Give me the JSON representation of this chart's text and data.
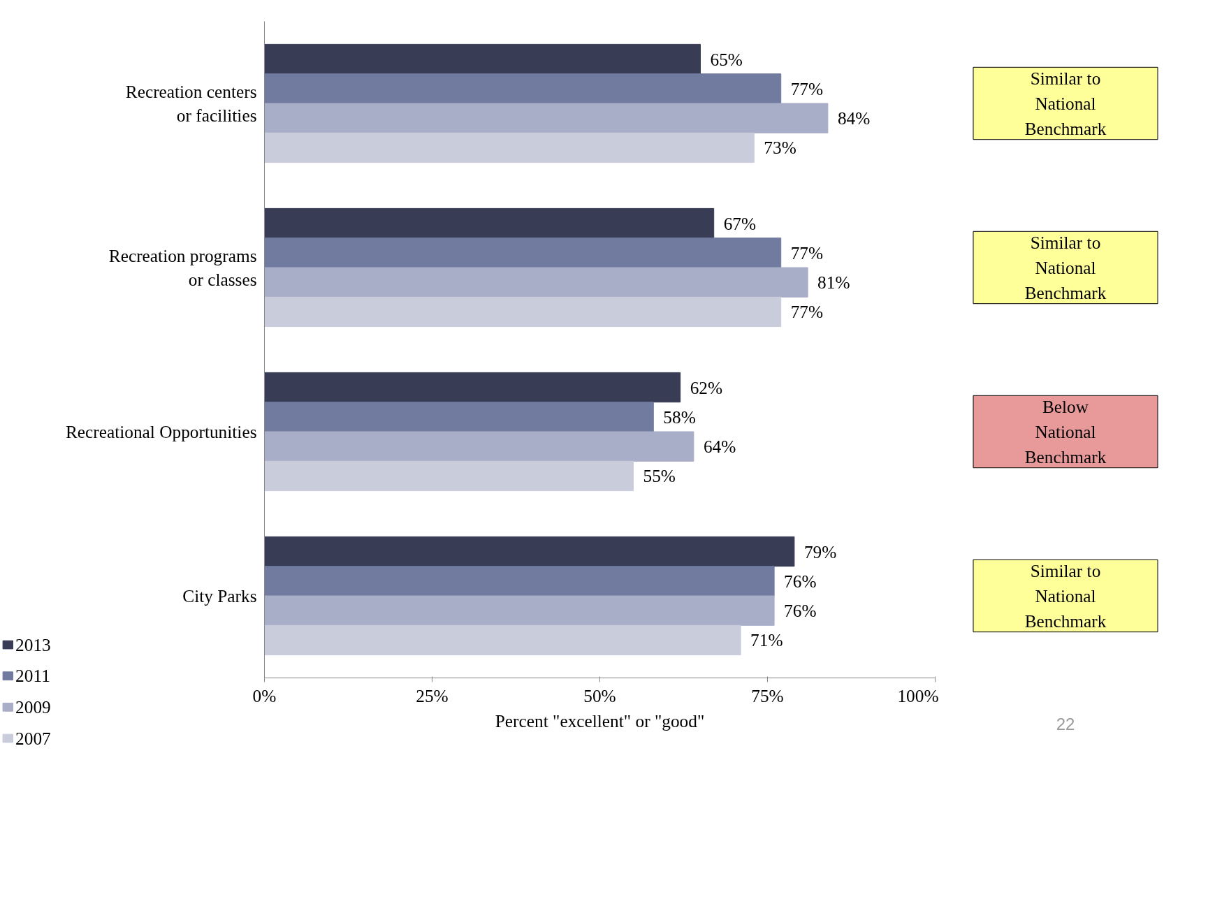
{
  "chart_data": {
    "type": "bar",
    "orientation": "horizontal",
    "xlabel": "Percent \"excellent\" or \"good\"",
    "categories": [
      "Recreation centers\nor facilities",
      "Recreation programs\nor classes",
      "Recreational Opportunities",
      "City Parks"
    ],
    "series": [
      {
        "name": "2013",
        "color": "#393c55",
        "values": [
          65,
          67,
          62,
          79
        ],
        "value_labels": [
          "65%",
          "67%",
          "62%",
          "79%"
        ]
      },
      {
        "name": "2011",
        "color": "#717a9f",
        "values": [
          77,
          77,
          58,
          76
        ],
        "value_labels": [
          "77%",
          "77%",
          "58%",
          "76%"
        ]
      },
      {
        "name": "2009",
        "color": "#a9aec8",
        "values": [
          84,
          81,
          64,
          76
        ],
        "value_labels": [
          "84%",
          "81%",
          "64%",
          "76%"
        ]
      },
      {
        "name": "2007",
        "color": "#c9ccdb",
        "values": [
          73,
          77,
          55,
          71
        ],
        "value_labels": [
          "73%",
          "77%",
          "55%",
          "71%"
        ]
      }
    ],
    "xlim": [
      0,
      100
    ],
    "xticks": [
      {
        "value": 0,
        "label": "0%"
      },
      {
        "value": 25,
        "label": "25%"
      },
      {
        "value": 50,
        "label": "50%"
      },
      {
        "value": 75,
        "label": "75%"
      },
      {
        "value": 100,
        "label": "100%"
      }
    ],
    "grid": false,
    "legend": "bottom left",
    "annotations": [
      "Similar to National Benchmark",
      "Similar to National Benchmark",
      "Below National Benchmark",
      "Similar to National Benchmark",
      "22"
    ]
  }
}
